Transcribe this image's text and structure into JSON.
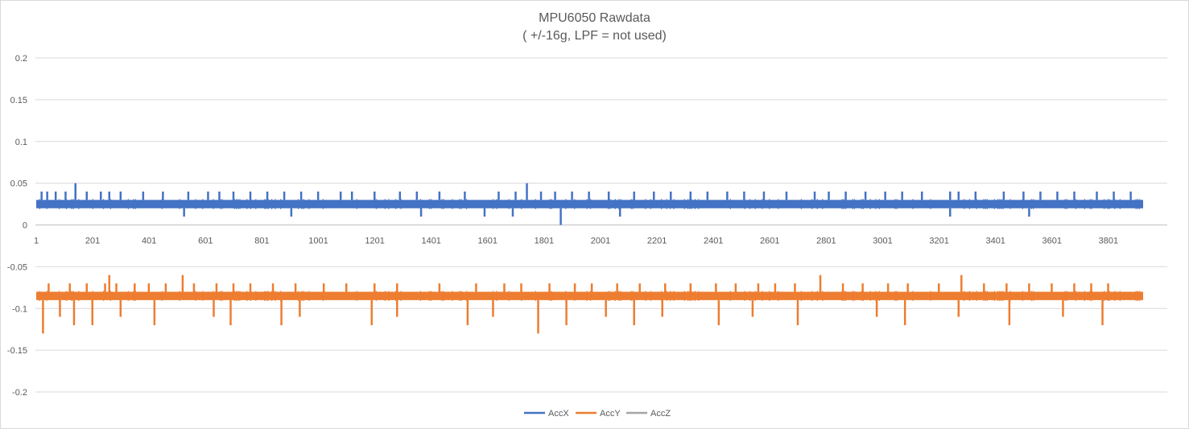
{
  "chart_data": {
    "type": "line",
    "title": "MPU6050 Rawdata",
    "subtitle": "( +/-16g, LPF = not used)",
    "xlabel": "",
    "ylabel": "",
    "ylim": [
      -0.2,
      0.2
    ],
    "xlim": [
      1,
      3924
    ],
    "y_ticks": [
      "0.2",
      "0.15",
      "0.1",
      "0.05",
      "0",
      "-0.05",
      "-0.1",
      "-0.15",
      "-0.2"
    ],
    "x_ticks": [
      "1",
      "201",
      "401",
      "601",
      "801",
      "1001",
      "1201",
      "1401",
      "1601",
      "1801",
      "2001",
      "2201",
      "2401",
      "2601",
      "2801",
      "3001",
      "3201",
      "3401",
      "3601",
      "3801"
    ],
    "grid": "horizontal",
    "legend_position": "bottom",
    "series": [
      {
        "name": "AccX",
        "color": "#4472c4",
        "band": [
          0.02,
          0.03
        ],
        "spikes_up": [
          [
            20,
            0.04
          ],
          [
            40,
            0.04
          ],
          [
            70,
            0.04
          ],
          [
            105,
            0.04
          ],
          [
            140,
            0.05
          ],
          [
            180,
            0.04
          ],
          [
            230,
            0.04
          ],
          [
            260,
            0.04
          ],
          [
            300,
            0.04
          ],
          [
            380,
            0.04
          ],
          [
            450,
            0.04
          ],
          [
            540,
            0.04
          ],
          [
            610,
            0.04
          ],
          [
            650,
            0.04
          ],
          [
            700,
            0.04
          ],
          [
            760,
            0.04
          ],
          [
            820,
            0.04
          ],
          [
            880,
            0.04
          ],
          [
            940,
            0.04
          ],
          [
            1000,
            0.04
          ],
          [
            1080,
            0.04
          ],
          [
            1120,
            0.04
          ],
          [
            1200,
            0.04
          ],
          [
            1290,
            0.04
          ],
          [
            1350,
            0.04
          ],
          [
            1430,
            0.04
          ],
          [
            1520,
            0.04
          ],
          [
            1640,
            0.04
          ],
          [
            1700,
            0.04
          ],
          [
            1740,
            0.05
          ],
          [
            1790,
            0.04
          ],
          [
            1840,
            0.04
          ],
          [
            1900,
            0.04
          ],
          [
            1960,
            0.04
          ],
          [
            2030,
            0.04
          ],
          [
            2120,
            0.04
          ],
          [
            2190,
            0.04
          ],
          [
            2250,
            0.04
          ],
          [
            2320,
            0.04
          ],
          [
            2380,
            0.04
          ],
          [
            2450,
            0.04
          ],
          [
            2510,
            0.04
          ],
          [
            2580,
            0.04
          ],
          [
            2660,
            0.04
          ],
          [
            2760,
            0.04
          ],
          [
            2810,
            0.04
          ],
          [
            2870,
            0.04
          ],
          [
            2940,
            0.04
          ],
          [
            3010,
            0.04
          ],
          [
            3070,
            0.04
          ],
          [
            3140,
            0.04
          ],
          [
            3240,
            0.04
          ],
          [
            3270,
            0.04
          ],
          [
            3330,
            0.04
          ],
          [
            3430,
            0.04
          ],
          [
            3500,
            0.04
          ],
          [
            3560,
            0.04
          ],
          [
            3620,
            0.04
          ],
          [
            3680,
            0.04
          ],
          [
            3760,
            0.04
          ],
          [
            3820,
            0.04
          ],
          [
            3880,
            0.04
          ]
        ],
        "spikes_down": [
          [
            525,
            0.01
          ],
          [
            905,
            0.01
          ],
          [
            1365,
            0.01
          ],
          [
            1590,
            0.01
          ],
          [
            1690,
            0.01
          ],
          [
            1860,
            0.0
          ],
          [
            2070,
            0.01
          ],
          [
            3240,
            0.01
          ],
          [
            3520,
            0.01
          ]
        ]
      },
      {
        "name": "AccY",
        "color": "#ed7d31",
        "band": [
          -0.09,
          -0.08
        ],
        "spikes_up": [
          [
            45,
            -0.07
          ],
          [
            120,
            -0.07
          ],
          [
            180,
            -0.07
          ],
          [
            245,
            -0.07
          ],
          [
            260,
            -0.06
          ],
          [
            285,
            -0.07
          ],
          [
            350,
            -0.07
          ],
          [
            400,
            -0.07
          ],
          [
            460,
            -0.07
          ],
          [
            520,
            -0.06
          ],
          [
            560,
            -0.07
          ],
          [
            640,
            -0.07
          ],
          [
            700,
            -0.07
          ],
          [
            760,
            -0.07
          ],
          [
            840,
            -0.07
          ],
          [
            920,
            -0.07
          ],
          [
            1020,
            -0.07
          ],
          [
            1100,
            -0.07
          ],
          [
            1200,
            -0.07
          ],
          [
            1280,
            -0.07
          ],
          [
            1430,
            -0.07
          ],
          [
            1560,
            -0.07
          ],
          [
            1660,
            -0.07
          ],
          [
            1720,
            -0.07
          ],
          [
            1820,
            -0.07
          ],
          [
            1910,
            -0.07
          ],
          [
            1970,
            -0.07
          ],
          [
            2060,
            -0.07
          ],
          [
            2140,
            -0.07
          ],
          [
            2230,
            -0.07
          ],
          [
            2320,
            -0.07
          ],
          [
            2410,
            -0.07
          ],
          [
            2480,
            -0.07
          ],
          [
            2560,
            -0.07
          ],
          [
            2620,
            -0.07
          ],
          [
            2690,
            -0.07
          ],
          [
            2780,
            -0.06
          ],
          [
            2860,
            -0.07
          ],
          [
            2930,
            -0.07
          ],
          [
            3020,
            -0.07
          ],
          [
            3090,
            -0.07
          ],
          [
            3200,
            -0.07
          ],
          [
            3280,
            -0.06
          ],
          [
            3360,
            -0.07
          ],
          [
            3440,
            -0.07
          ],
          [
            3520,
            -0.07
          ],
          [
            3600,
            -0.07
          ],
          [
            3680,
            -0.07
          ],
          [
            3740,
            -0.07
          ],
          [
            3800,
            -0.07
          ]
        ],
        "spikes_down": [
          [
            25,
            -0.13
          ],
          [
            85,
            -0.11
          ],
          [
            135,
            -0.12
          ],
          [
            200,
            -0.12
          ],
          [
            300,
            -0.11
          ],
          [
            420,
            -0.12
          ],
          [
            630,
            -0.11
          ],
          [
            690,
            -0.12
          ],
          [
            870,
            -0.12
          ],
          [
            935,
            -0.11
          ],
          [
            1190,
            -0.12
          ],
          [
            1280,
            -0.11
          ],
          [
            1530,
            -0.12
          ],
          [
            1620,
            -0.11
          ],
          [
            1780,
            -0.13
          ],
          [
            1880,
            -0.12
          ],
          [
            2020,
            -0.11
          ],
          [
            2120,
            -0.12
          ],
          [
            2220,
            -0.11
          ],
          [
            2420,
            -0.12
          ],
          [
            2540,
            -0.11
          ],
          [
            2700,
            -0.12
          ],
          [
            2980,
            -0.11
          ],
          [
            3080,
            -0.12
          ],
          [
            3270,
            -0.11
          ],
          [
            3450,
            -0.12
          ],
          [
            3640,
            -0.11
          ],
          [
            3780,
            -0.12
          ]
        ]
      },
      {
        "name": "AccZ",
        "color": "#a5a5a5"
      }
    ]
  }
}
